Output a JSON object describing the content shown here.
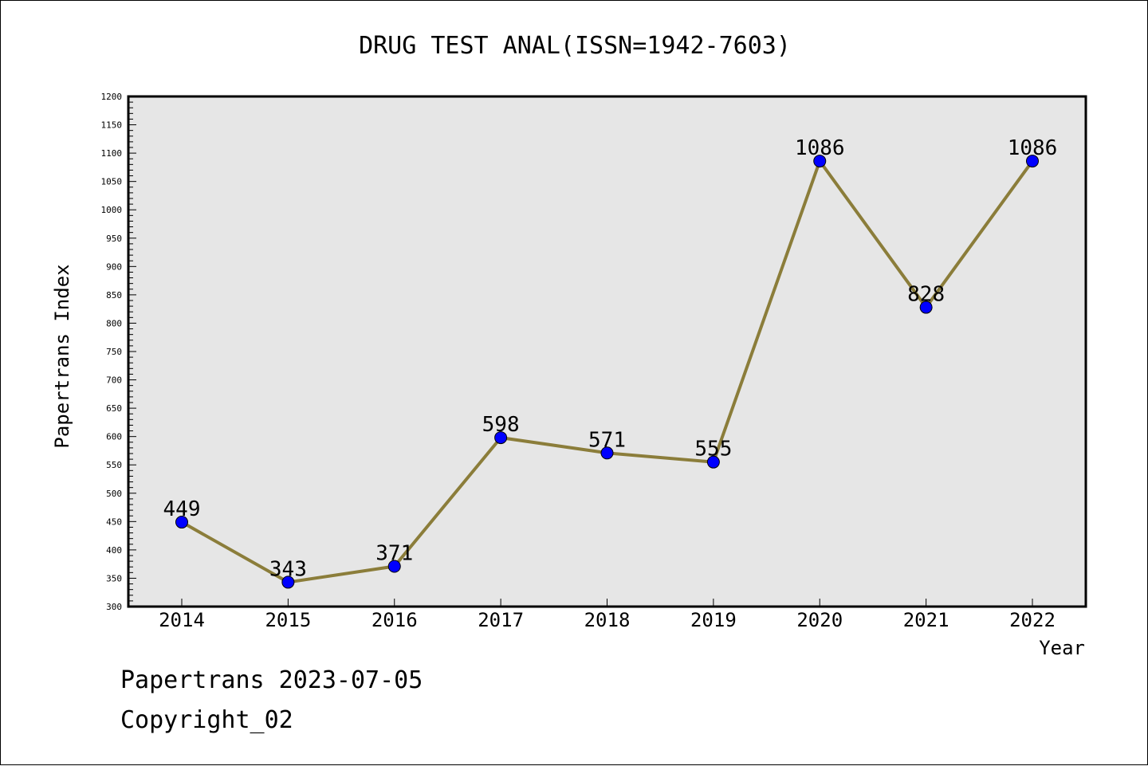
{
  "chart_data": {
    "type": "line",
    "title": "DRUG TEST ANAL(ISSN=1942-7603)",
    "xlabel": "Year",
    "ylabel": "Papertrans Index",
    "categories": [
      "2014",
      "2015",
      "2016",
      "2017",
      "2018",
      "2019",
      "2020",
      "2021",
      "2022"
    ],
    "values": [
      449,
      343,
      371,
      598,
      571,
      555,
      1086,
      828,
      1086
    ],
    "data_labels": [
      "449",
      "343",
      "371",
      "598",
      "571",
      "555",
      "1086",
      "828",
      "1086"
    ],
    "ylim": [
      300,
      1200
    ],
    "yticks": [
      "300",
      "350",
      "400",
      "450",
      "500",
      "550",
      "600",
      "650",
      "700",
      "750",
      "800",
      "850",
      "900",
      "950",
      "1000",
      "1050",
      "1100",
      "1150",
      "1200"
    ],
    "grid": false,
    "colors": {
      "line": "#8B7D3A",
      "marker": "#0000FF",
      "plot_bg": "#E6E6E6"
    }
  },
  "footer": {
    "line1": "Papertrans 2023-07-05",
    "line2": "Copyright_02"
  }
}
